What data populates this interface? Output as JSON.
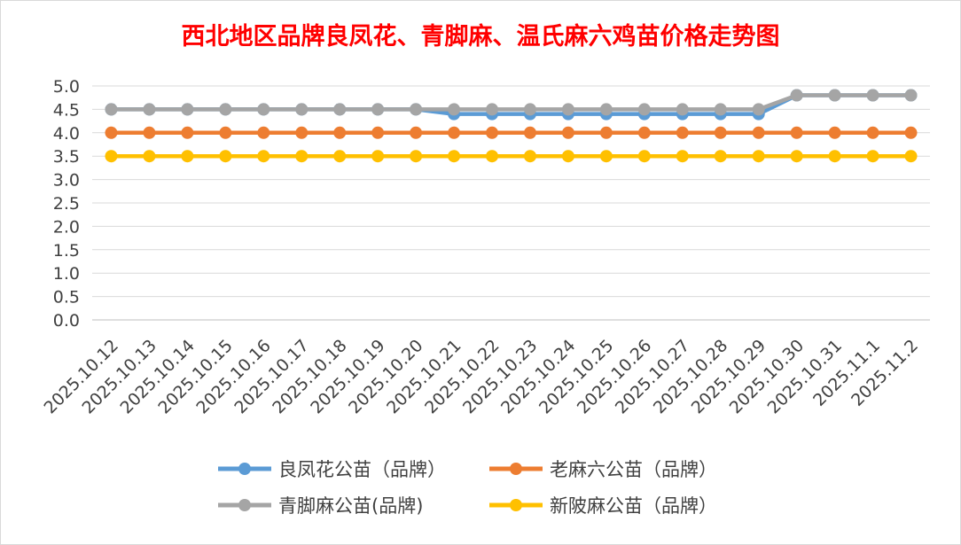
{
  "chart_data": {
    "type": "line",
    "title": "西北地区品牌良凤花、青脚麻、温氏麻六鸡苗价格走势图",
    "xlabel": "",
    "ylabel": "",
    "ylim": [
      0,
      5
    ],
    "y_ticks": [
      "0.0",
      "0.5",
      "1.0",
      "1.5",
      "2.0",
      "2.5",
      "3.0",
      "3.5",
      "4.0",
      "4.5",
      "5.0"
    ],
    "grid": true,
    "legend_position": "bottom",
    "categories": [
      "2025.10.12",
      "2025.10.13",
      "2025.10.14",
      "2025.10.15",
      "2025.10.16",
      "2025.10.17",
      "2025.10.18",
      "2025.10.19",
      "2025.10.20",
      "2025.10.21",
      "2025.10.22",
      "2025.10.23",
      "2025.10.24",
      "2025.10.25",
      "2025.10.26",
      "2025.10.27",
      "2025.10.28",
      "2025.10.29",
      "2025.10.30",
      "2025.10.31",
      "2025.11.1",
      "2025.11.2"
    ],
    "series": [
      {
        "name": "良凤花公苗（品牌）",
        "color": "#5B9BD5",
        "values": [
          4.5,
          4.5,
          4.5,
          4.5,
          4.5,
          4.5,
          4.5,
          4.5,
          4.5,
          4.4,
          4.4,
          4.4,
          4.4,
          4.4,
          4.4,
          4.4,
          4.4,
          4.4,
          4.8,
          4.8,
          4.8,
          4.8
        ]
      },
      {
        "name": "老麻六公苗（品牌）",
        "color": "#ED7D31",
        "values": [
          4.0,
          4.0,
          4.0,
          4.0,
          4.0,
          4.0,
          4.0,
          4.0,
          4.0,
          4.0,
          4.0,
          4.0,
          4.0,
          4.0,
          4.0,
          4.0,
          4.0,
          4.0,
          4.0,
          4.0,
          4.0,
          4.0
        ]
      },
      {
        "name": "青脚麻公苗(品牌)",
        "color": "#A5A5A5",
        "values": [
          4.5,
          4.5,
          4.5,
          4.5,
          4.5,
          4.5,
          4.5,
          4.5,
          4.5,
          4.5,
          4.5,
          4.5,
          4.5,
          4.5,
          4.5,
          4.5,
          4.5,
          4.5,
          4.8,
          4.8,
          4.8,
          4.8
        ]
      },
      {
        "name": "新陂麻公苗（品牌）",
        "color": "#FFC000",
        "values": [
          3.5,
          3.5,
          3.5,
          3.5,
          3.5,
          3.5,
          3.5,
          3.5,
          3.5,
          3.5,
          3.5,
          3.5,
          3.5,
          3.5,
          3.5,
          3.5,
          3.5,
          3.5,
          3.5,
          3.5,
          3.5,
          3.5
        ]
      }
    ],
    "title_color": "#FF0000"
  }
}
